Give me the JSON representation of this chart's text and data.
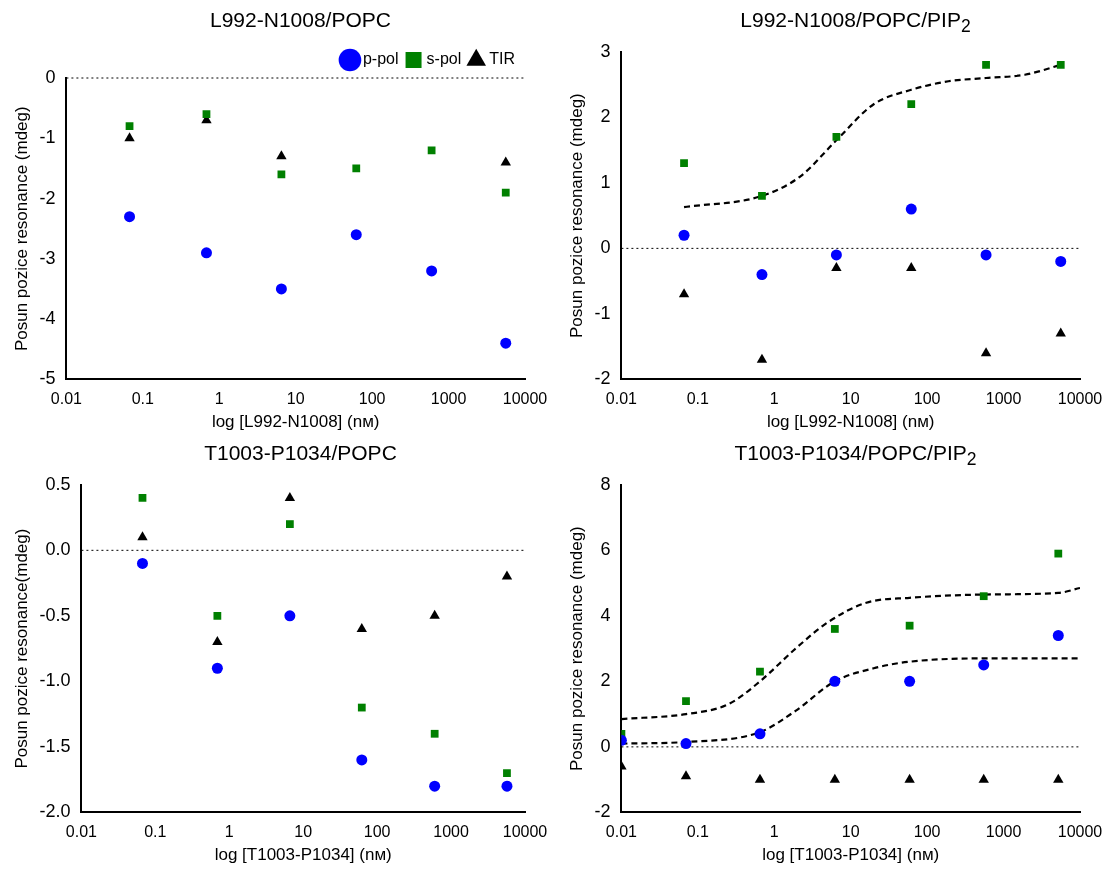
{
  "chart_data": [
    {
      "type": "scatter",
      "title": "L992-N1008/POPC",
      "xlabel": "log [L992-N1008] (nм)",
      "ylabel": "Posun pozice resonance (mdeg)",
      "log": "x",
      "xlim": [
        0.01,
        10000
      ],
      "xticks": [
        0.01,
        0.1,
        1,
        10,
        100,
        1000,
        10000
      ],
      "ylim": [
        -5,
        0
      ],
      "yticks": [
        -5,
        -4,
        -3,
        -2,
        -1,
        0
      ],
      "grid": false,
      "legend": "top right",
      "x": [
        0.067,
        0.68,
        6.5,
        62,
        600,
        5600
      ],
      "ref_lines": [
        {
          "axis": "y",
          "value": 0,
          "line_style": "dotted",
          "color": "#000000"
        }
      ],
      "series": [
        {
          "name": "p-pol",
          "color": "#0000ff",
          "marker": "circle",
          "values": [
            -2.3,
            -2.9,
            -3.5,
            -2.6,
            -3.2,
            -4.4
          ]
        },
        {
          "name": "s-pol",
          "color": "#008000",
          "marker": "square",
          "values": [
            -0.8,
            -0.6,
            -1.6,
            -1.5,
            -1.2,
            -1.9
          ]
        },
        {
          "name": "TIR",
          "color": "#000000",
          "marker": "triangle",
          "values": [
            -1.0,
            -0.7,
            -1.3,
            null,
            null,
            -1.4
          ]
        }
      ]
    },
    {
      "type": "scatter",
      "title": "L992-N1008/POPC/PIP$_{2}$",
      "xlabel": "log [L992-N1008] (nм)",
      "ylabel": "Posun pozice resonance (mdeg)",
      "log": "x",
      "xlim": [
        0.01,
        10000
      ],
      "xticks": [
        0.01,
        0.1,
        1,
        10,
        100,
        1000,
        10000
      ],
      "ylim": [
        -2,
        3
      ],
      "yticks": [
        -2,
        -1,
        0,
        1,
        2,
        3
      ],
      "grid": false,
      "x": [
        0.066,
        0.69,
        6.5,
        62,
        590,
        5600
      ],
      "ref_lines": [
        {
          "axis": "y",
          "value": 0,
          "line_style": "dotted",
          "color": "#000000"
        }
      ],
      "series": [
        {
          "color": "#0000ff",
          "marker": "circle",
          "values": [
            0.2,
            -0.4,
            -0.1,
            0.6,
            -0.1,
            -0.2
          ]
        },
        {
          "color": "#008000",
          "marker": "square",
          "values": [
            1.3,
            0.8,
            1.7,
            2.2,
            2.8,
            2.8
          ]
        },
        {
          "color": "#000000",
          "marker": "triangle",
          "values": [
            -0.7,
            -1.7,
            -0.3,
            -0.3,
            -1.6,
            -1.3
          ]
        },
        {
          "type": "line",
          "color": "#000000",
          "marker": "none",
          "line_style": "dashed",
          "x": [
            0.066,
            0.69,
            2.2,
            6.5,
            20,
            62,
            190,
            590,
            1900,
            5600
          ],
          "values": [
            0.63,
            0.8,
            1.1,
            1.65,
            2.2,
            2.42,
            2.55,
            2.6,
            2.65,
            2.8
          ]
        }
      ]
    },
    {
      "type": "scatter",
      "title": "T1003-P1034/POPC",
      "xlabel": "log [T1003-P1034] (nм)",
      "ylabel": "Posun pozice resonance(mdeg)",
      "log": "x",
      "xlim": [
        0.01,
        10000
      ],
      "xticks": [
        0.01,
        0.1,
        1,
        10,
        100,
        1000,
        10000
      ],
      "ylim": [
        -2,
        0.5
      ],
      "yticks": [
        {
          "value": -2,
          "label": "-2.0"
        },
        -1.5,
        {
          "value": -1,
          "label": "-1.0"
        },
        -0.5,
        {
          "value": 0,
          "label": "0.0"
        },
        0.5
      ],
      "grid": false,
      "x": [
        0.067,
        0.69,
        6.6,
        62,
        600,
        5700
      ],
      "ref_lines": [
        {
          "axis": "y",
          "value": 0,
          "line_style": "dotted",
          "color": "#000000"
        }
      ],
      "series": [
        {
          "color": "#0000ff",
          "marker": "circle",
          "values": [
            -0.1,
            -0.9,
            -0.5,
            -1.6,
            -1.8,
            -1.8
          ]
        },
        {
          "color": "#008000",
          "marker": "square",
          "values": [
            0.4,
            -0.5,
            0.2,
            -1.2,
            -1.4,
            -1.7
          ]
        },
        {
          "color": "#000000",
          "marker": "triangle",
          "values": [
            0.1,
            -0.7,
            0.4,
            -0.6,
            -0.5,
            -0.2
          ]
        }
      ]
    },
    {
      "type": "scatter",
      "title": "T1003-P1034/POPC/PIP$_{2}$",
      "xlabel": "log [T1003-P1034] (nм)",
      "ylabel": "Posun pozice resonance (mdeg)",
      "log": "x",
      "xlim": [
        0.01,
        10000
      ],
      "xticks": [
        0.01,
        0.1,
        1,
        10,
        100,
        1000,
        10000
      ],
      "ylim": [
        -2,
        8
      ],
      "yticks": [
        -2,
        0,
        2,
        4,
        6,
        8
      ],
      "grid": false,
      "x": [
        0.01,
        0.07,
        0.65,
        6.2,
        59,
        550,
        5200
      ],
      "ref_lines": [
        {
          "axis": "y",
          "value": 0,
          "line_style": "dotted",
          "color": "#000000"
        }
      ],
      "series": [
        {
          "color": "#0000ff",
          "marker": "circle",
          "values": [
            0.2,
            0.1,
            0.4,
            2.0,
            2.0,
            2.5,
            3.4
          ]
        },
        {
          "color": "#008000",
          "marker": "square",
          "values": [
            0.4,
            1.4,
            2.3,
            3.6,
            3.7,
            4.6,
            5.9
          ]
        },
        {
          "color": "#000000",
          "marker": "triangle",
          "values": [
            -0.6,
            -0.9,
            -1.0,
            -1.0,
            -1.0,
            -1.0,
            -1.0
          ]
        },
        {
          "type": "line",
          "color": "#000000",
          "marker": "none",
          "line_style": "dashed",
          "x": [
            0.01,
            0.07,
            0.25,
            0.65,
            1.9,
            5,
            16,
            59,
            550,
            5200,
            10000
          ],
          "values": [
            0.85,
            1.0,
            1.3,
            2.0,
            3.0,
            3.8,
            4.4,
            4.55,
            4.65,
            4.7,
            4.85
          ]
        },
        {
          "type": "line",
          "color": "#000000",
          "marker": "none",
          "line_style": "dashed",
          "x": [
            0.01,
            0.07,
            0.65,
            1.9,
            6.2,
            20,
            59,
            550,
            10000
          ],
          "values": [
            0.1,
            0.15,
            0.45,
            1.1,
            2.0,
            2.4,
            2.6,
            2.7,
            2.7
          ]
        }
      ]
    }
  ]
}
